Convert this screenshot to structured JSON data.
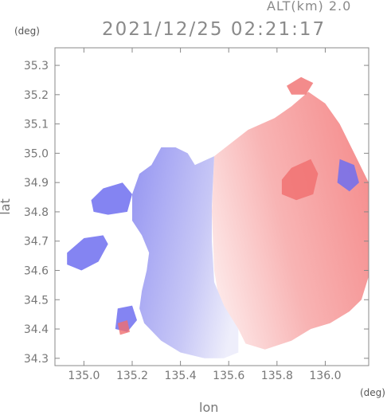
{
  "header": {
    "alt_label": "ALT(km) 2.0",
    "datetime": "2021/12/25 02:21:17"
  },
  "chart_data": {
    "type": "heatmap",
    "title": "2021/12/25 02:21:17",
    "subtitle": "ALT(km) 2.0",
    "xlabel": "lon",
    "ylabel": "lat",
    "xunit": "(deg)",
    "yunit": "(deg)",
    "xlim": [
      134.88,
      136.18
    ],
    "ylim": [
      34.275,
      35.36
    ],
    "xticks": [
      135.0,
      135.2,
      135.4,
      135.6,
      135.8,
      136.0
    ],
    "xtick_labels": [
      "135.0",
      "135.2",
      "135.4",
      "135.6",
      "135.8",
      "136.0"
    ],
    "yticks": [
      34.3,
      34.4,
      34.5,
      34.6,
      34.7,
      34.8,
      34.9,
      35.0,
      35.1,
      35.2,
      35.3
    ],
    "ytick_labels": [
      "34.3",
      "34.4",
      "34.5",
      "34.6",
      "34.7",
      "34.8",
      "34.9",
      "35.0",
      "35.1",
      "35.2",
      "35.3"
    ],
    "grid": false,
    "colors": {
      "negative": "#6e6ef0",
      "negative_light": "#dcdcf8",
      "positive": "#f06e6e",
      "positive_light": "#fbdcdc",
      "neutral": "#ffffff"
    },
    "regions": [
      {
        "sign": "positive",
        "polygon": [
          [
            135.54,
            34.99
          ],
          [
            135.68,
            35.08
          ],
          [
            135.79,
            35.12
          ],
          [
            135.86,
            35.16
          ],
          [
            135.93,
            35.21
          ],
          [
            136.0,
            35.17
          ],
          [
            136.06,
            35.1
          ],
          [
            136.12,
            35.0
          ],
          [
            136.18,
            34.9
          ],
          [
            136.18,
            34.58
          ],
          [
            136.15,
            34.5
          ],
          [
            136.1,
            34.46
          ],
          [
            136.02,
            34.42
          ],
          [
            135.94,
            34.4
          ],
          [
            135.86,
            34.36
          ],
          [
            135.75,
            34.33
          ],
          [
            135.67,
            34.35
          ],
          [
            135.64,
            34.4
          ],
          [
            135.6,
            34.45
          ],
          [
            135.56,
            34.5
          ],
          [
            135.54,
            34.6
          ],
          [
            135.53,
            34.8
          ]
        ]
      },
      {
        "sign": "negative",
        "polygon": [
          [
            135.46,
            34.96
          ],
          [
            135.43,
            35.0
          ],
          [
            135.38,
            35.02
          ],
          [
            135.32,
            35.02
          ],
          [
            135.28,
            34.96
          ],
          [
            135.23,
            34.93
          ],
          [
            135.2,
            34.86
          ],
          [
            135.2,
            34.77
          ],
          [
            135.24,
            34.72
          ],
          [
            135.27,
            34.66
          ],
          [
            135.26,
            34.6
          ],
          [
            135.24,
            34.53
          ],
          [
            135.23,
            34.47
          ],
          [
            135.25,
            34.42
          ],
          [
            135.32,
            34.36
          ],
          [
            135.4,
            34.32
          ],
          [
            135.5,
            34.3
          ],
          [
            135.58,
            34.3
          ],
          [
            135.64,
            34.32
          ],
          [
            135.64,
            34.4
          ],
          [
            135.58,
            34.48
          ],
          [
            135.54,
            34.56
          ],
          [
            135.53,
            34.7
          ],
          [
            135.53,
            34.82
          ],
          [
            135.54,
            34.99
          ]
        ]
      },
      {
        "sign": "negative",
        "polygon": [
          [
            135.08,
            34.88
          ],
          [
            135.16,
            34.9
          ],
          [
            135.2,
            34.86
          ],
          [
            135.18,
            34.8
          ],
          [
            135.1,
            34.79
          ],
          [
            135.04,
            34.8
          ],
          [
            135.03,
            34.84
          ]
        ]
      },
      {
        "sign": "negative",
        "polygon": [
          [
            134.93,
            34.66
          ],
          [
            135.0,
            34.71
          ],
          [
            135.08,
            34.72
          ],
          [
            135.1,
            34.69
          ],
          [
            135.06,
            34.63
          ],
          [
            134.99,
            34.6
          ],
          [
            134.93,
            34.62
          ]
        ]
      },
      {
        "sign": "negative",
        "polygon": [
          [
            135.14,
            34.47
          ],
          [
            135.2,
            34.48
          ],
          [
            135.22,
            34.43
          ],
          [
            135.18,
            34.39
          ],
          [
            135.13,
            34.4
          ]
        ]
      },
      {
        "sign": "positive",
        "polygon": [
          [
            135.84,
            35.23
          ],
          [
            135.9,
            35.26
          ],
          [
            135.95,
            35.24
          ],
          [
            135.92,
            35.2
          ],
          [
            135.86,
            35.2
          ]
        ]
      },
      {
        "sign": "positive",
        "polygon": [
          [
            135.86,
            34.95
          ],
          [
            135.94,
            34.98
          ],
          [
            135.97,
            34.93
          ],
          [
            135.95,
            34.86
          ],
          [
            135.88,
            34.84
          ],
          [
            135.82,
            34.86
          ],
          [
            135.82,
            34.91
          ]
        ]
      },
      {
        "sign": "negative",
        "polygon": [
          [
            136.06,
            34.98
          ],
          [
            136.12,
            34.96
          ],
          [
            136.14,
            34.9
          ],
          [
            136.1,
            34.87
          ],
          [
            136.05,
            34.9
          ]
        ]
      },
      {
        "sign": "positive",
        "polygon": [
          [
            135.14,
            34.42
          ],
          [
            135.18,
            34.43
          ],
          [
            135.19,
            34.39
          ],
          [
            135.15,
            34.38
          ]
        ]
      }
    ]
  }
}
